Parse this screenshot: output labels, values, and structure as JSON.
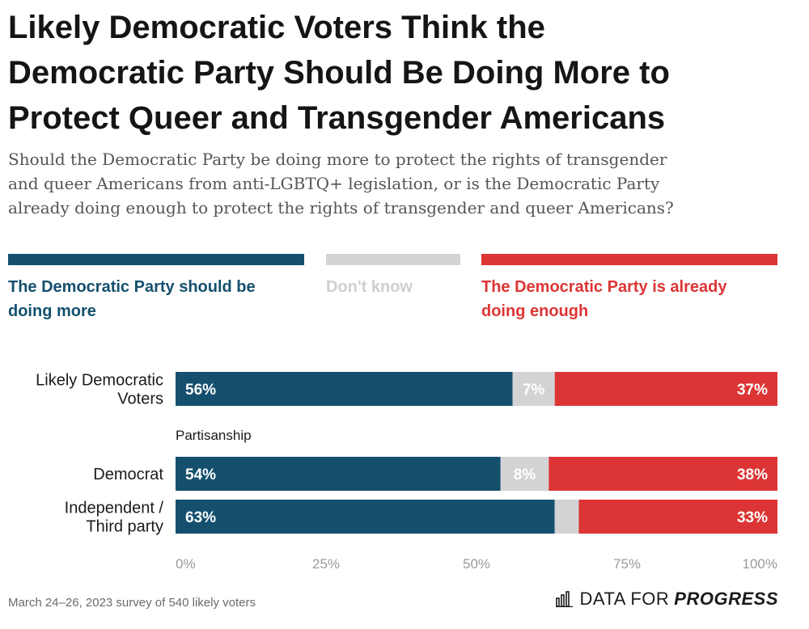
{
  "header": {
    "title_lines": [
      "Likely Democratic Voters Think the",
      "Democratic Party Should Be Doing More to",
      "Protect Queer and Transgender Americans"
    ],
    "subtitle_lines": [
      "Should the Democratic Party be doing more to protect the rights of transgender",
      "and queer Americans from anti-LGBTQ+ legislation, or is the Democratic Party",
      "already doing enough to protect the rights of transgender and queer Americans?"
    ]
  },
  "legend": {
    "items": [
      {
        "line1": "The Democratic Party should be",
        "line2": "doing more",
        "color": "#14506e"
      },
      {
        "line1": "Don't know",
        "line2": "",
        "color": "#d3d3d5"
      },
      {
        "line1": "The Democratic Party is already",
        "line2": "doing enough",
        "color": "#dd3535"
      }
    ]
  },
  "chart_data": {
    "type": "bar",
    "orientation": "horizontal",
    "stacked": true,
    "categories": [
      "Likely Democratic Voters",
      "Democrat",
      "Independent / Third party"
    ],
    "category_label_lines": [
      [
        "Likely Democratic",
        "Voters"
      ],
      [
        "Democrat"
      ],
      [
        "Independent /",
        "Third party"
      ]
    ],
    "group_label": "Partisanship",
    "series": [
      {
        "name": "The Democratic Party should be doing more",
        "values": [
          56,
          54,
          63
        ],
        "labels": [
          "56%",
          "54%",
          "63%"
        ],
        "color": "#14506e"
      },
      {
        "name": "Don't know",
        "values": [
          7,
          8,
          4
        ],
        "labels": [
          "7%",
          "8%",
          ""
        ],
        "color": "#d3d3d5"
      },
      {
        "name": "The Democratic Party is already doing enough",
        "values": [
          37,
          38,
          33
        ],
        "labels": [
          "37%",
          "38%",
          "33%"
        ],
        "color": "#dd3535"
      }
    ],
    "xlim": [
      0,
      100
    ],
    "xticks": [
      "0%",
      "25%",
      "50%",
      "75%",
      "100%"
    ]
  },
  "footer": {
    "note": "March 24–26, 2023 survey of 540 likely voters",
    "brand_a": "DATA FOR",
    "brand_b": "PROGRESS"
  }
}
